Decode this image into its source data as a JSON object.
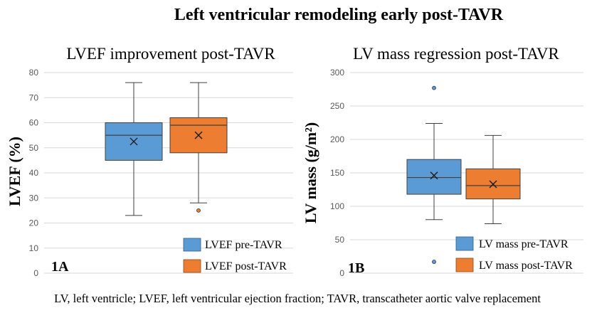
{
  "figure": {
    "title": "Left ventricular remodeling early post-TAVR",
    "caption": "LV, left ventricle; LVEF, left ventricular ejection fraction; TAVR, transcatheter aortic valve replacement"
  },
  "chart_data": [
    {
      "type": "box",
      "panel_label": "1A",
      "title": "LVEF improvement post-TAVR",
      "xlabel": "",
      "ylabel": "LVEF  (%)",
      "ylim": [
        0,
        80
      ],
      "yticks": [
        0,
        10,
        20,
        30,
        40,
        50,
        60,
        70,
        80
      ],
      "grid": true,
      "legend_position": "bottom-right",
      "series": [
        {
          "name": "LVEF pre-TAVR",
          "color": "#5B9BD5",
          "min": 23,
          "q1": 45,
          "median": 55,
          "q3": 60,
          "max": 76,
          "mean": 52.5,
          "outliers": []
        },
        {
          "name": "LVEF post-TAVR",
          "color": "#ED7D31",
          "min": 28,
          "q1": 48,
          "median": 59,
          "q3": 62,
          "max": 76,
          "mean": 55,
          "outliers": [
            25
          ]
        }
      ]
    },
    {
      "type": "box",
      "panel_label": "1B",
      "title": "LV mass regression post-TAVR",
      "xlabel": "",
      "ylabel": "LV mass (g/m²)",
      "ylim": [
        0,
        300
      ],
      "yticks": [
        0,
        50,
        100,
        150,
        200,
        250,
        300
      ],
      "grid": true,
      "legend_position": "bottom-right",
      "series": [
        {
          "name": "LV mass pre-TAVR",
          "color": "#5B9BD5",
          "min": 80,
          "q1": 118,
          "median": 143,
          "q3": 170,
          "max": 224,
          "mean": 146,
          "outliers": [
            277,
            17
          ]
        },
        {
          "name": "LV mass post-TAVR",
          "color": "#ED7D31",
          "min": 74,
          "q1": 111,
          "median": 131,
          "q3": 156,
          "max": 206,
          "mean": 133,
          "outliers": []
        }
      ]
    }
  ]
}
